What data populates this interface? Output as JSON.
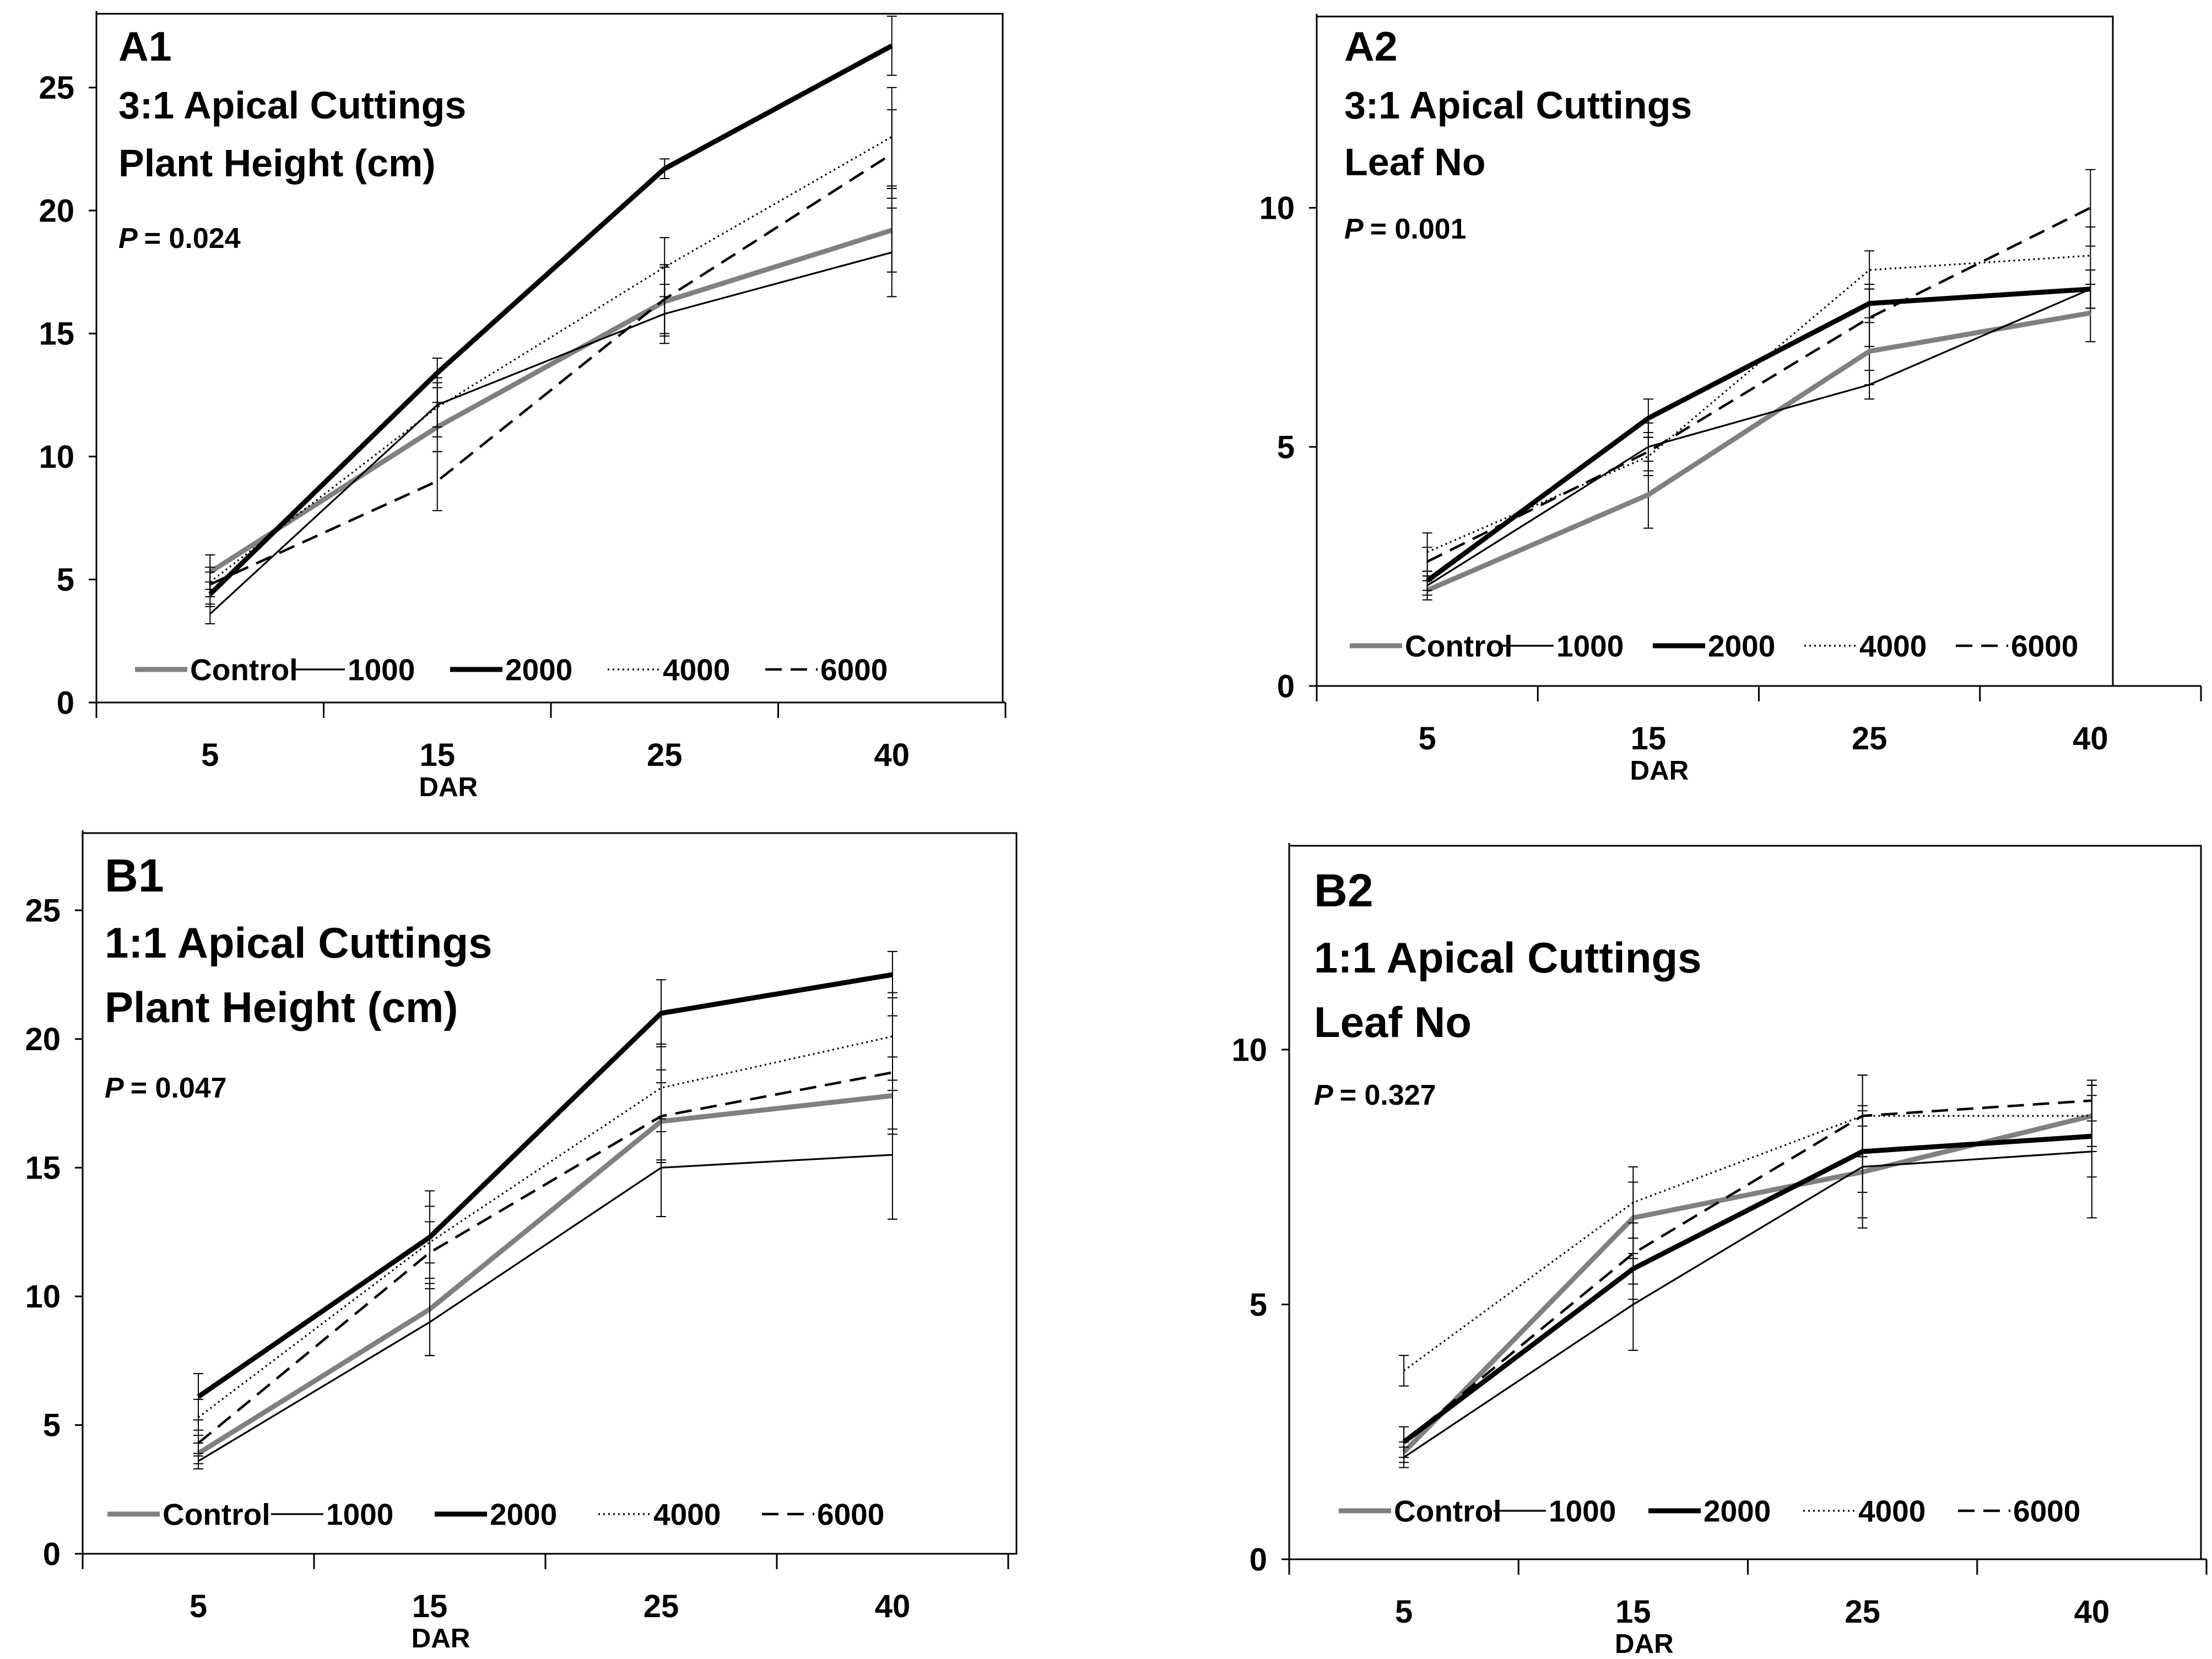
{
  "figure": {
    "background": "#ffffff",
    "axis_color": "#000000"
  },
  "series_styles": {
    "Control": {
      "color": "#808080",
      "dash": "solid",
      "weight": "heavy"
    },
    "1000": {
      "color": "#000000",
      "dash": "solid",
      "weight": "thin"
    },
    "2000": {
      "color": "#000000",
      "dash": "solid",
      "weight": "heavy"
    },
    "4000": {
      "color": "#000000",
      "dash": "dotted",
      "weight": "thin"
    },
    "6000": {
      "color": "#000000",
      "dash": "dashed",
      "weight": "medium"
    }
  },
  "chart_data": [
    {
      "type": "line",
      "id": "A1",
      "label": "A1",
      "subtitle": "3:1 Apical Cuttings",
      "title": "Plant Height (cm)",
      "p_label": "P",
      "p_value": "= 0.024",
      "xlabel": "DAR",
      "ylabel": "",
      "categories": [
        "5",
        "15",
        "25",
        "40"
      ],
      "ylim": [
        0,
        28
      ],
      "yticks": [
        0,
        5,
        10,
        15,
        20,
        25
      ],
      "legend": "bottom",
      "series": [
        {
          "name": "Control",
          "values": [
            5.3,
            11.2,
            16.3,
            19.2
          ],
          "errors": [
            0.7,
            1.0,
            1.4,
            1.7
          ]
        },
        {
          "name": "1000",
          "values": [
            3.6,
            12.1,
            15.8,
            18.3
          ],
          "errors": [
            0.4,
            0.9,
            1.2,
            1.8
          ]
        },
        {
          "name": "2000",
          "values": [
            4.4,
            13.4,
            21.7,
            26.7
          ],
          "errors": [
            0.5,
            0.6,
            0.4,
            1.2
          ]
        },
        {
          "name": "4000",
          "values": [
            4.9,
            12.0,
            17.7,
            23.0
          ],
          "errors": [
            0.6,
            1.2,
            1.2,
            2.0
          ]
        },
        {
          "name": "6000",
          "values": [
            4.8,
            9.0,
            16.4,
            22.3
          ],
          "errors": [
            0.5,
            1.2,
            1.4,
            1.8
          ]
        }
      ]
    },
    {
      "type": "line",
      "id": "A2",
      "label": "A2",
      "subtitle": "3:1 Apical Cuttings",
      "title": "Leaf No",
      "p_label": "P",
      "p_value": "= 0.001",
      "xlabel": "DAR",
      "ylabel": "",
      "categories": [
        "5",
        "15",
        "25",
        "40"
      ],
      "ylim": [
        0,
        14
      ],
      "yticks": [
        0,
        5,
        10
      ],
      "legend": "bottom",
      "series": [
        {
          "name": "Control",
          "values": [
            2.0,
            4.0,
            7.0,
            7.8
          ],
          "errors": [
            0.2,
            0.7,
            0.7,
            0.6
          ]
        },
        {
          "name": "1000",
          "values": [
            2.1,
            5.0,
            6.3,
            8.3
          ],
          "errors": [
            0.2,
            0.5,
            0.3,
            0.4
          ]
        },
        {
          "name": "2000",
          "values": [
            2.2,
            5.6,
            8.0,
            8.3
          ],
          "errors": [
            0.2,
            0.4,
            0.4,
            0.4
          ]
        },
        {
          "name": "4000",
          "values": [
            2.8,
            4.8,
            8.7,
            9.0
          ],
          "errors": [
            0.4,
            0.4,
            0.4,
            0.6
          ]
        },
        {
          "name": "6000",
          "values": [
            2.6,
            4.9,
            7.7,
            10.0
          ],
          "errors": [
            0.3,
            0.4,
            0.6,
            0.8
          ]
        }
      ]
    },
    {
      "type": "line",
      "id": "B1",
      "label": "B1",
      "subtitle": "1:1 Apical Cuttings",
      "title": "Plant Height (cm)",
      "p_label": "P",
      "p_value": "= 0.047",
      "xlabel": "DAR",
      "ylabel": "",
      "categories": [
        "5",
        "15",
        "25",
        "40"
      ],
      "ylim": [
        0,
        28
      ],
      "yticks": [
        0,
        5,
        10,
        15,
        20,
        25
      ],
      "legend": "bottom",
      "series": [
        {
          "name": "Control",
          "values": [
            3.9,
            9.5,
            16.8,
            17.8
          ],
          "errors": [
            0.4,
            1.8,
            1.5,
            1.5
          ]
        },
        {
          "name": "1000",
          "values": [
            3.6,
            9.0,
            15.0,
            15.5
          ],
          "errors": [
            0.3,
            1.3,
            1.9,
            2.5
          ]
        },
        {
          "name": "2000",
          "values": [
            6.1,
            12.3,
            21.0,
            22.5
          ],
          "errors": [
            0.9,
            1.8,
            1.3,
            0.9
          ]
        },
        {
          "name": "4000",
          "values": [
            5.3,
            12.1,
            18.1,
            20.1
          ],
          "errors": [
            0.7,
            1.4,
            1.7,
            1.7
          ]
        },
        {
          "name": "6000",
          "values": [
            4.3,
            11.7,
            17.0,
            18.7
          ],
          "errors": [
            0.5,
            1.2,
            1.8,
            2.2
          ]
        }
      ]
    },
    {
      "type": "line",
      "id": "B2",
      "label": "B2",
      "subtitle": "1:1 Apical Cuttings",
      "title": "Leaf No",
      "p_label": "P",
      "p_value": "= 0.327",
      "xlabel": "DAR",
      "ylabel": "",
      "categories": [
        "5",
        "15",
        "25",
        "40"
      ],
      "ylim": [
        0,
        14
      ],
      "yticks": [
        0,
        5,
        10
      ],
      "legend": "bottom",
      "series": [
        {
          "name": "Control",
          "values": [
            2.1,
            6.7,
            7.6,
            8.7
          ],
          "errors": [
            0.2,
            0.7,
            0.9,
            0.6
          ]
        },
        {
          "name": "1000",
          "values": [
            2.0,
            5.0,
            7.7,
            8.0
          ],
          "errors": [
            0.2,
            0.9,
            1.2,
            1.3
          ]
        },
        {
          "name": "2000",
          "values": [
            2.3,
            5.7,
            8.0,
            8.3
          ],
          "errors": [
            0.3,
            0.6,
            0.8,
            0.8
          ]
        },
        {
          "name": "4000",
          "values": [
            3.7,
            7.0,
            8.7,
            8.7
          ],
          "errors": [
            0.3,
            0.7,
            0.8,
            0.7
          ]
        },
        {
          "name": "6000",
          "values": [
            2.3,
            6.0,
            8.7,
            9.0
          ],
          "errors": [
            0.3,
            0.6,
            0.8,
            0.4
          ]
        }
      ]
    }
  ]
}
